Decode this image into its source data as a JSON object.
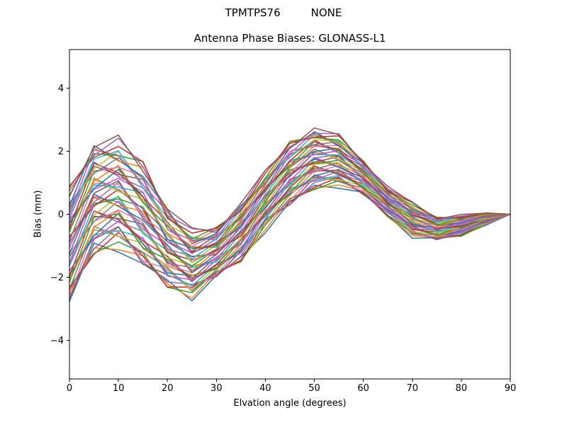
{
  "figure": {
    "suptitle_left": "TPMTPS76",
    "suptitle_right": "NONE",
    "background": "#ffffff"
  },
  "chart_data": {
    "type": "line",
    "title": "Antenna Phase Biases: GLONASS-L1",
    "xlabel": "Elvation angle (degrees)",
    "ylabel": "Bias (mm)",
    "xlim": [
      0,
      90
    ],
    "ylim": [
      -5.22,
      5.22
    ],
    "xticks": [
      0,
      10,
      20,
      30,
      40,
      50,
      60,
      70,
      80,
      90
    ],
    "yticks": [
      -4,
      -2,
      0,
      2,
      4
    ],
    "grid": false,
    "legend": false,
    "marker": "none",
    "x": [
      0,
      5,
      10,
      15,
      20,
      25,
      30,
      35,
      40,
      45,
      50,
      55,
      60,
      65,
      70,
      75,
      80,
      85,
      90
    ],
    "envelope_upper": [
      1.0,
      2.45,
      2.45,
      1.8,
      0.35,
      -0.45,
      -0.35,
      0.45,
      1.4,
      2.4,
      2.8,
      2.55,
      1.75,
      0.9,
      0.4,
      -0.05,
      0.0,
      0.05,
      0.0
    ],
    "envelope_lower": [
      -3.0,
      -1.4,
      -1.15,
      -1.85,
      -2.4,
      -2.7,
      -2.1,
      -1.55,
      -0.55,
      0.15,
      0.75,
      0.85,
      0.55,
      -0.1,
      -0.75,
      -0.85,
      -0.7,
      -0.35,
      0.0
    ],
    "n_series": 50,
    "series_model": {
      "t_spread": 0.88,
      "jitter_amp": 0.16,
      "jitter_freq_series": 7.13,
      "jitter_freq_node": 2.17,
      "note": "50 unlabeled overlapping per-satellite bias curves; each series i: v[k] = mean[k] + hw[k]*(t_i*t_spread + jitter_amp*sin(i*7.13 + k*2.17)), t_i = -1 + 2i/49, where mean/hw derive from envelope_upper/envelope_lower; all curves equal 0 at elevation 90"
    },
    "line_width": 1.5,
    "axis_color": "#000000",
    "colors": [
      "#1f77b4",
      "#ff7f0e",
      "#2ca02c",
      "#d62728",
      "#9467bd",
      "#8c564b",
      "#e377c2",
      "#7f7f7f",
      "#bcbd22",
      "#17becf",
      "#cf4ecf"
    ]
  }
}
